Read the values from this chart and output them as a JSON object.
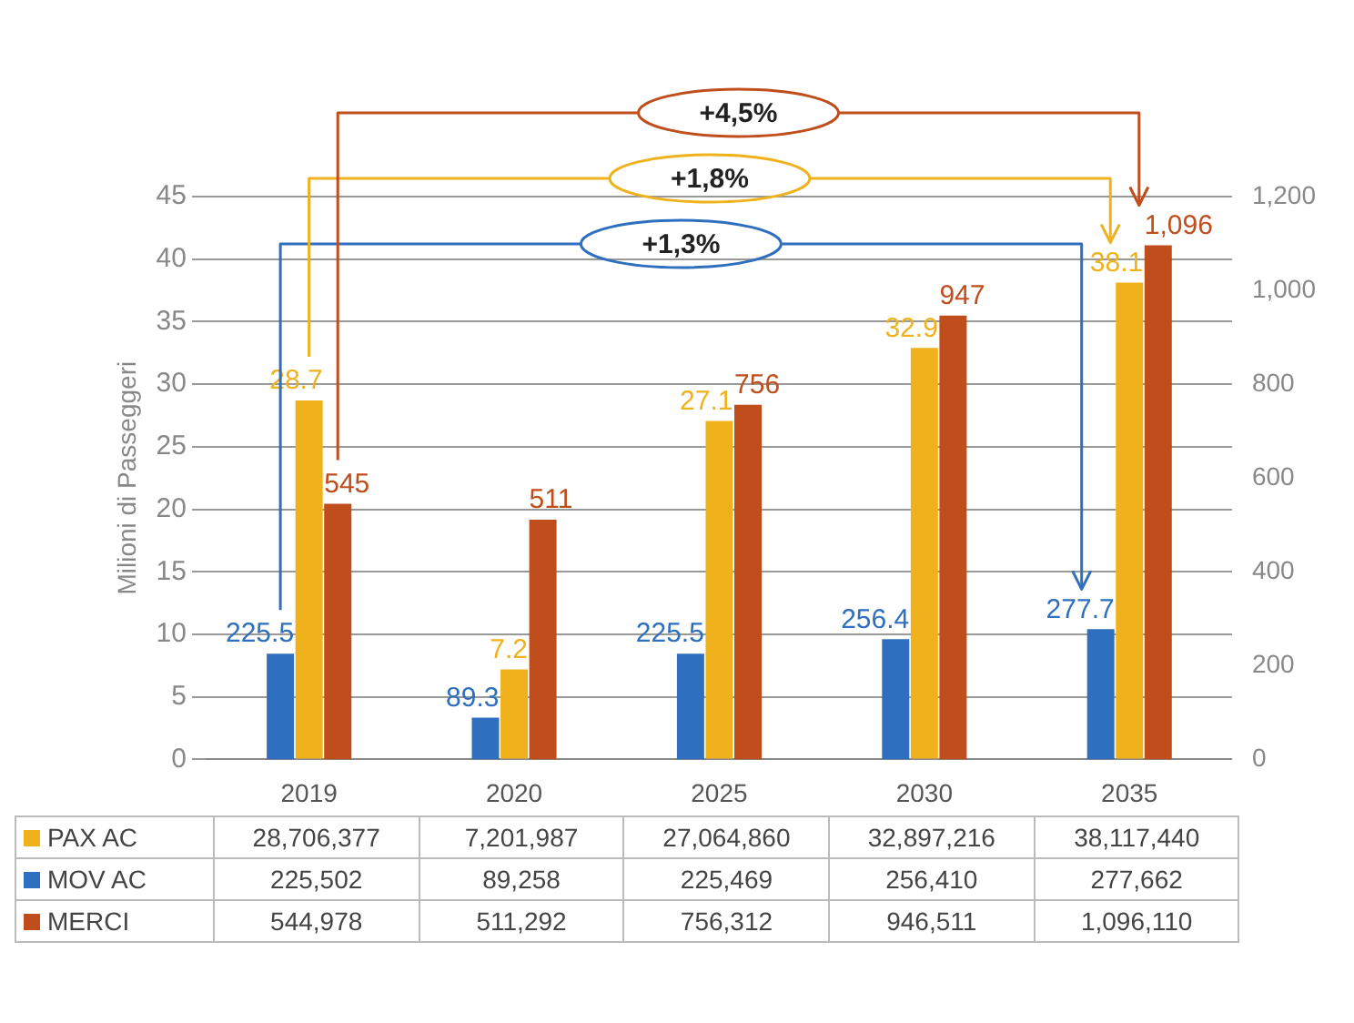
{
  "chart_data": {
    "type": "bar",
    "ylabel": "Milioni di Passeggeri",
    "categories": [
      "2019",
      "2020",
      "2025",
      "2030",
      "2035"
    ],
    "series": [
      {
        "name": "PAX AC",
        "color": "#f0b21c",
        "values": [
          28.706377,
          7.201987,
          27.06486,
          32.897216,
          38.11744
        ],
        "value_labels": [
          "28.7",
          "7.2",
          "27.1",
          "32.9",
          "38.1"
        ]
      },
      {
        "name": "MOV AC",
        "color": "#2f6fbf",
        "axis": "y2",
        "values": [
          225.502,
          89.258,
          225.469,
          256.41,
          277.662
        ],
        "value_labels": [
          "225.5",
          "89.3",
          "225.5",
          "256.4",
          "277.7"
        ]
      },
      {
        "name": "MERCI",
        "color": "#c04d1c",
        "axis": "y2",
        "values": [
          544.978,
          511.292,
          756.312,
          946.511,
          1096.11
        ],
        "value_labels": [
          "545",
          "511",
          "756",
          "947",
          "1,096"
        ]
      }
    ],
    "ylim": [
      0,
      45
    ],
    "yticks": [
      0,
      5,
      10,
      15,
      20,
      25,
      30,
      35,
      40,
      45
    ],
    "y2lim": [
      0,
      1200
    ],
    "y2ticks": [
      0,
      200,
      400,
      600,
      800,
      {
        "value": 1000,
        "label": "1,000"
      },
      {
        "value": 1200,
        "label": "1,200"
      }
    ],
    "grid": "y",
    "legend": "bottom",
    "annotations": [
      "+1,8%",
      "+1,3%",
      "+4,5%",
      "28,706,377",
      "7,201,987",
      "27,064,860",
      "32,897,216",
      "38,117,440",
      "225,502",
      "89,258",
      "225,469",
      "256,410",
      "277,662",
      "544,978",
      "511,292",
      "756,312",
      "946,511",
      "1,096,110"
    ]
  }
}
